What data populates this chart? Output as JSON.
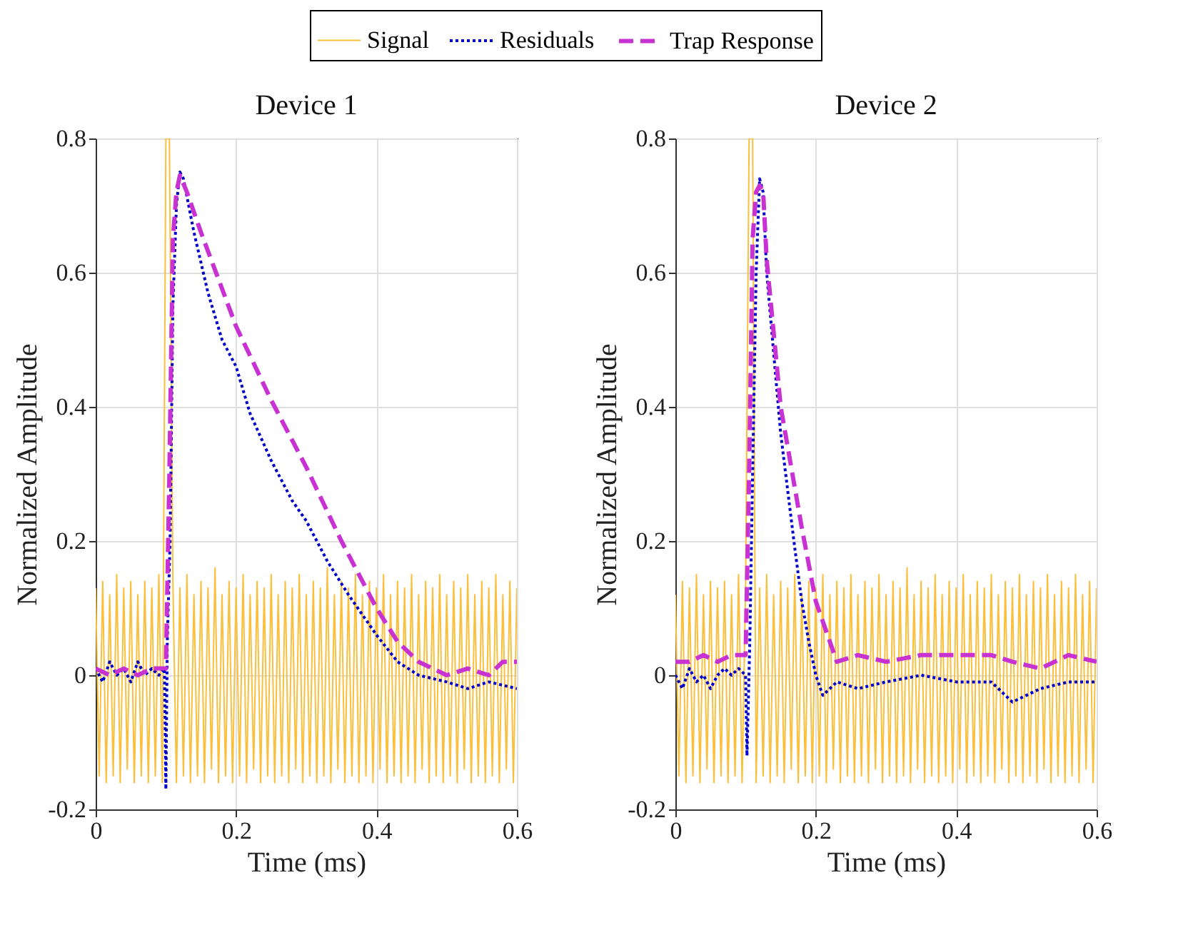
{
  "chart_data": [
    {
      "type": "line",
      "title": "Device 1",
      "xlabel": "Time (ms)",
      "ylabel": "Normalized Amplitude",
      "xlim": [
        0,
        0.6
      ],
      "ylim": [
        -0.2,
        0.8
      ],
      "xticks": [
        0,
        0.2,
        0.4,
        0.6
      ],
      "yticks": [
        -0.2,
        0,
        0.2,
        0.4,
        0.6,
        0.8
      ],
      "grid": true,
      "legend": "top",
      "series": [
        {
          "name": "Signal",
          "color": "#fbbf3c",
          "line_style": "solid",
          "x": [
            0,
            0.005,
            0.01,
            0.015,
            0.02,
            0.025,
            0.03,
            0.035,
            0.04,
            0.045,
            0.05,
            0.055,
            0.06,
            0.065,
            0.07,
            0.075,
            0.08,
            0.085,
            0.09,
            0.095,
            0.1,
            0.105,
            0.11,
            0.115,
            0.12,
            0.125,
            0.13,
            0.135,
            0.14,
            0.145,
            0.15,
            0.155,
            0.16,
            0.165,
            0.17,
            0.175,
            0.18,
            0.185,
            0.19,
            0.195,
            0.2,
            0.205,
            0.21,
            0.215,
            0.22,
            0.225,
            0.23,
            0.235,
            0.24,
            0.245,
            0.25,
            0.255,
            0.26,
            0.265,
            0.27,
            0.275,
            0.28,
            0.285,
            0.29,
            0.295,
            0.3,
            0.305,
            0.31,
            0.315,
            0.32,
            0.325,
            0.33,
            0.335,
            0.34,
            0.345,
            0.35,
            0.355,
            0.36,
            0.365,
            0.37,
            0.375,
            0.38,
            0.385,
            0.39,
            0.395,
            0.4,
            0.405,
            0.41,
            0.415,
            0.42,
            0.425,
            0.43,
            0.435,
            0.44,
            0.445,
            0.45,
            0.455,
            0.46,
            0.465,
            0.47,
            0.475,
            0.48,
            0.485,
            0.49,
            0.495,
            0.5,
            0.505,
            0.51,
            0.515,
            0.52,
            0.525,
            0.53,
            0.535,
            0.54,
            0.545,
            0.55,
            0.555,
            0.56,
            0.565,
            0.57,
            0.575,
            0.58,
            0.585,
            0.59,
            0.595,
            0.6
          ],
          "values": [
            0.13,
            -0.15,
            0.14,
            -0.16,
            0.12,
            -0.15,
            0.15,
            -0.16,
            0.13,
            -0.14,
            0.14,
            -0.16,
            0.12,
            -0.15,
            0.14,
            -0.16,
            0.13,
            -0.15,
            0.15,
            -0.16,
            0.8,
            0.8,
            0.14,
            -0.16,
            0.13,
            -0.15,
            0.15,
            -0.16,
            0.12,
            -0.15,
            0.14,
            -0.16,
            0.13,
            -0.14,
            0.16,
            -0.16,
            0.12,
            -0.15,
            0.14,
            -0.16,
            0.13,
            -0.15,
            0.15,
            -0.16,
            0.12,
            -0.14,
            0.14,
            -0.16,
            0.13,
            -0.15,
            0.15,
            -0.16,
            0.12,
            -0.15,
            0.14,
            -0.16,
            0.13,
            -0.14,
            0.15,
            -0.16,
            0.12,
            -0.15,
            0.14,
            -0.16,
            0.13,
            -0.15,
            0.16,
            -0.16,
            0.12,
            -0.14,
            0.14,
            -0.16,
            0.13,
            -0.15,
            0.15,
            -0.16,
            0.12,
            -0.15,
            0.14,
            -0.16,
            0.13,
            -0.14,
            0.15,
            -0.16,
            0.12,
            -0.15,
            0.14,
            -0.16,
            0.13,
            -0.15,
            0.15,
            -0.16,
            0.12,
            -0.14,
            0.14,
            -0.16,
            0.13,
            -0.15,
            0.15,
            -0.16,
            0.12,
            -0.15,
            0.14,
            -0.16,
            0.13,
            -0.14,
            0.15,
            -0.16,
            0.12,
            -0.15,
            0.14,
            -0.16,
            0.13,
            -0.15,
            0.15,
            -0.16,
            0.12,
            -0.14,
            0.14,
            -0.16,
            0.13
          ]
        },
        {
          "name": "Residuals",
          "color": "#0000c8",
          "line_style": "dotted",
          "x": [
            0,
            0.01,
            0.02,
            0.03,
            0.04,
            0.05,
            0.06,
            0.07,
            0.08,
            0.09,
            0.098,
            0.1,
            0.102,
            0.106,
            0.11,
            0.115,
            0.12,
            0.125,
            0.14,
            0.16,
            0.18,
            0.2,
            0.22,
            0.25,
            0.28,
            0.3,
            0.33,
            0.36,
            0.4,
            0.43,
            0.46,
            0.5,
            0.53,
            0.56,
            0.6
          ],
          "values": [
            0.01,
            -0.01,
            0.02,
            0,
            0.01,
            -0.01,
            0.02,
            0,
            0.01,
            0,
            0.01,
            -0.17,
            0.05,
            0.2,
            0.55,
            0.7,
            0.75,
            0.74,
            0.66,
            0.57,
            0.5,
            0.46,
            0.39,
            0.32,
            0.26,
            0.23,
            0.17,
            0.12,
            0.06,
            0.02,
            0,
            -0.01,
            -0.02,
            -0.01,
            -0.02
          ]
        },
        {
          "name": "Trap Response",
          "color": "#c832d2",
          "line_style": "dashed",
          "x": [
            0,
            0.02,
            0.04,
            0.06,
            0.08,
            0.1,
            0.105,
            0.11,
            0.115,
            0.12,
            0.13,
            0.15,
            0.2,
            0.25,
            0.3,
            0.35,
            0.4,
            0.43,
            0.46,
            0.5,
            0.53,
            0.56,
            0.58,
            0.6
          ],
          "values": [
            0.01,
            0,
            0.01,
            0,
            0.01,
            0.01,
            0.3,
            0.65,
            0.72,
            0.745,
            0.72,
            0.66,
            0.52,
            0.41,
            0.31,
            0.2,
            0.1,
            0.05,
            0.02,
            0,
            0.01,
            0,
            0.02,
            0.02
          ]
        }
      ]
    },
    {
      "type": "line",
      "title": "Device 2",
      "xlabel": "Time (ms)",
      "ylabel": "Normalized Amplitude",
      "xlim": [
        0,
        0.6
      ],
      "ylim": [
        -0.2,
        0.8
      ],
      "xticks": [
        0,
        0.2,
        0.4,
        0.6
      ],
      "yticks": [
        -0.2,
        0,
        0.2,
        0.4,
        0.6,
        0.8
      ],
      "grid": true,
      "legend": "top",
      "series": [
        {
          "name": "Signal",
          "color": "#fbbf3c",
          "line_style": "solid",
          "x": [
            0,
            0.005,
            0.01,
            0.015,
            0.02,
            0.025,
            0.03,
            0.035,
            0.04,
            0.045,
            0.05,
            0.055,
            0.06,
            0.065,
            0.07,
            0.075,
            0.08,
            0.085,
            0.09,
            0.095,
            0.1,
            0.105,
            0.11,
            0.115,
            0.12,
            0.125,
            0.13,
            0.135,
            0.14,
            0.145,
            0.15,
            0.155,
            0.16,
            0.165,
            0.17,
            0.175,
            0.18,
            0.185,
            0.19,
            0.195,
            0.2,
            0.205,
            0.21,
            0.215,
            0.22,
            0.225,
            0.23,
            0.235,
            0.24,
            0.245,
            0.25,
            0.255,
            0.26,
            0.265,
            0.27,
            0.275,
            0.28,
            0.285,
            0.29,
            0.295,
            0.3,
            0.305,
            0.31,
            0.315,
            0.32,
            0.325,
            0.33,
            0.335,
            0.34,
            0.345,
            0.35,
            0.355,
            0.36,
            0.365,
            0.37,
            0.375,
            0.38,
            0.385,
            0.39,
            0.395,
            0.4,
            0.405,
            0.41,
            0.415,
            0.42,
            0.425,
            0.43,
            0.435,
            0.44,
            0.445,
            0.45,
            0.455,
            0.46,
            0.465,
            0.47,
            0.475,
            0.48,
            0.485,
            0.49,
            0.495,
            0.5,
            0.505,
            0.51,
            0.515,
            0.52,
            0.525,
            0.53,
            0.535,
            0.54,
            0.545,
            0.55,
            0.555,
            0.56,
            0.565,
            0.57,
            0.575,
            0.58,
            0.585,
            0.59,
            0.595,
            0.6
          ],
          "values": [
            0.12,
            -0.15,
            0.14,
            -0.16,
            0.13,
            -0.15,
            0.15,
            -0.16,
            0.12,
            -0.14,
            0.14,
            -0.16,
            0.13,
            -0.15,
            0.14,
            -0.16,
            0.12,
            -0.15,
            0.15,
            -0.16,
            0.13,
            0.8,
            0.8,
            -0.16,
            0.13,
            -0.15,
            0.15,
            -0.16,
            0.12,
            -0.15,
            0.14,
            -0.16,
            0.13,
            -0.14,
            0.15,
            -0.16,
            0.12,
            -0.15,
            0.14,
            -0.16,
            0.13,
            -0.15,
            0.15,
            -0.16,
            0.12,
            -0.14,
            0.14,
            -0.16,
            0.13,
            -0.15,
            0.15,
            -0.16,
            0.12,
            -0.15,
            0.14,
            -0.16,
            0.13,
            -0.14,
            0.15,
            -0.16,
            0.12,
            -0.15,
            0.14,
            -0.16,
            0.13,
            -0.15,
            0.16,
            -0.16,
            0.12,
            -0.14,
            0.14,
            -0.16,
            0.13,
            -0.15,
            0.15,
            -0.16,
            0.12,
            -0.15,
            0.14,
            -0.16,
            0.13,
            -0.14,
            0.15,
            -0.16,
            0.12,
            -0.15,
            0.14,
            -0.16,
            0.13,
            -0.15,
            0.15,
            -0.16,
            0.12,
            -0.14,
            0.14,
            -0.16,
            0.13,
            -0.15,
            0.15,
            -0.16,
            0.12,
            -0.15,
            0.14,
            -0.16,
            0.13,
            -0.14,
            0.15,
            -0.16,
            0.12,
            -0.15,
            0.14,
            -0.16,
            0.13,
            -0.15,
            0.15,
            -0.16,
            0.12,
            -0.14,
            0.14,
            -0.16,
            0.13
          ]
        },
        {
          "name": "Residuals",
          "color": "#0000c8",
          "line_style": "dotted",
          "x": [
            0,
            0.01,
            0.02,
            0.03,
            0.04,
            0.05,
            0.06,
            0.07,
            0.08,
            0.09,
            0.1,
            0.102,
            0.106,
            0.11,
            0.115,
            0.12,
            0.125,
            0.13,
            0.15,
            0.17,
            0.18,
            0.19,
            0.2,
            0.21,
            0.23,
            0.26,
            0.3,
            0.35,
            0.4,
            0.45,
            0.48,
            0.52,
            0.56,
            0.6
          ],
          "values": [
            0,
            -0.02,
            0.01,
            -0.01,
            0,
            -0.02,
            0,
            0.01,
            0,
            0.01,
            0,
            -0.12,
            0.05,
            0.3,
            0.6,
            0.74,
            0.72,
            0.6,
            0.36,
            0.19,
            0.11,
            0.05,
            0,
            -0.03,
            -0.01,
            -0.02,
            -0.01,
            0,
            -0.01,
            -0.01,
            -0.04,
            -0.02,
            -0.01,
            -0.01
          ]
        },
        {
          "name": "Trap Response",
          "color": "#c832d2",
          "line_style": "dashed",
          "x": [
            0,
            0.02,
            0.04,
            0.06,
            0.08,
            0.1,
            0.105,
            0.11,
            0.115,
            0.12,
            0.125,
            0.13,
            0.15,
            0.18,
            0.2,
            0.22,
            0.23,
            0.26,
            0.3,
            0.35,
            0.4,
            0.45,
            0.48,
            0.52,
            0.56,
            0.6
          ],
          "values": [
            0.02,
            0.02,
            0.03,
            0.02,
            0.03,
            0.03,
            0.3,
            0.65,
            0.72,
            0.73,
            0.72,
            0.62,
            0.4,
            0.22,
            0.11,
            0.05,
            0.02,
            0.03,
            0.02,
            0.03,
            0.03,
            0.03,
            0.02,
            0.01,
            0.03,
            0.02
          ]
        }
      ]
    }
  ]
}
